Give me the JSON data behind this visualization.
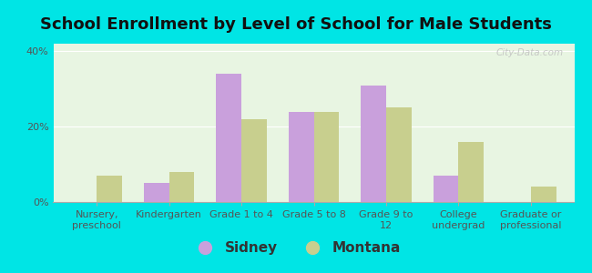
{
  "title": "School Enrollment by Level of School for Male Students",
  "categories": [
    "Nursery,\npreschool",
    "Kindergarten",
    "Grade 1 to 4",
    "Grade 5 to 8",
    "Grade 9 to\n12",
    "College\nundergrad",
    "Graduate or\nprofessional"
  ],
  "sidney_values": [
    0,
    5,
    34,
    24,
    31,
    7,
    0
  ],
  "montana_values": [
    7,
    8,
    22,
    24,
    25,
    16,
    4
  ],
  "sidney_color": "#c9a0dc",
  "montana_color": "#c8cf8e",
  "background_color": "#00e5e5",
  "plot_bg_color": "#e8f5e2",
  "ylim": [
    0,
    42
  ],
  "yticks": [
    0,
    20,
    40
  ],
  "ytick_labels": [
    "0%",
    "20%",
    "40%"
  ],
  "legend_labels": [
    "Sidney",
    "Montana"
  ],
  "bar_width": 0.35,
  "title_fontsize": 13,
  "tick_fontsize": 8,
  "legend_fontsize": 11,
  "watermark_text": "City-Data.com"
}
